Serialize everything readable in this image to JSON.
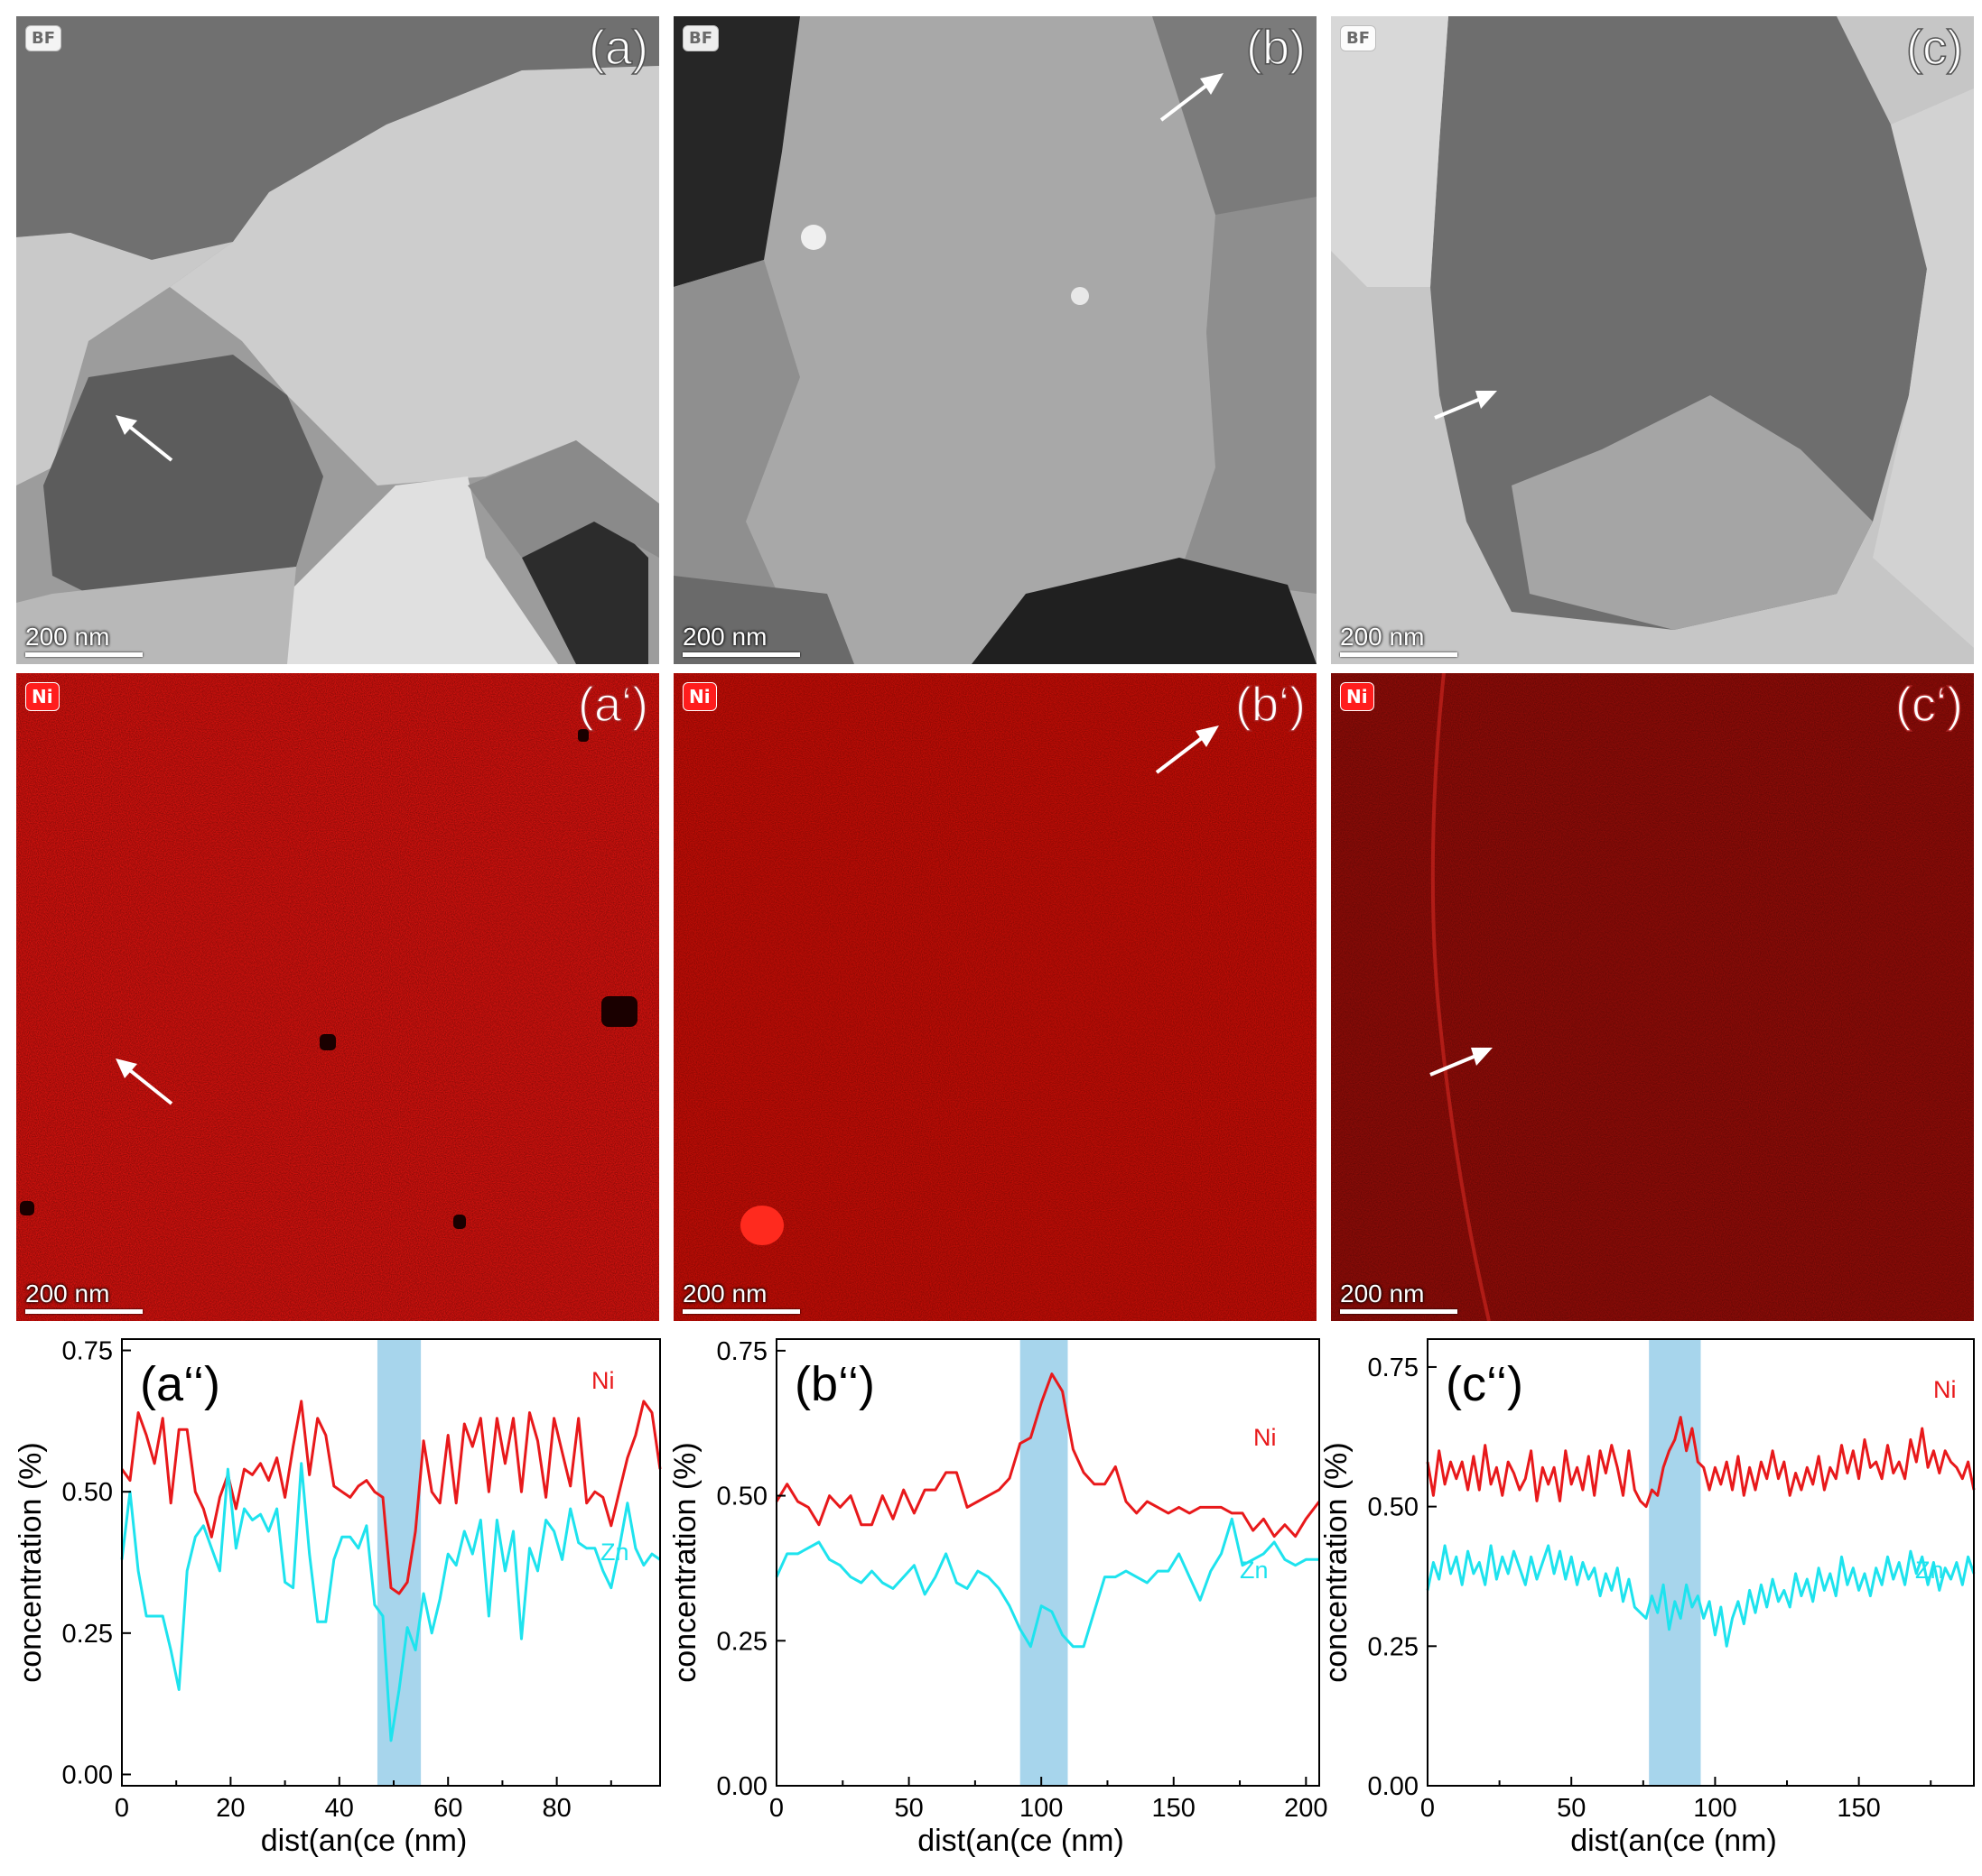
{
  "images": [
    {
      "key": "a",
      "badge": "BF",
      "label": "(a)",
      "scalebar": "200 nm"
    },
    {
      "key": "b",
      "badge": "BF",
      "label": "(b)",
      "scalebar": "200 nm"
    },
    {
      "key": "c",
      "badge": "BF",
      "label": "(c)",
      "scalebar": "200 nm"
    },
    {
      "key": "a1",
      "badge": "Ni",
      "label": "(a‘)",
      "scalebar": "200 nm"
    },
    {
      "key": "b1",
      "badge": "Ni",
      "label": "(b‘)",
      "scalebar": "200 nm"
    },
    {
      "key": "c1",
      "badge": "Ni",
      "label": "(c‘)",
      "scalebar": "200 nm"
    }
  ],
  "colors": {
    "ni_line": "#e8191b",
    "zn_line": "#1ee3ee",
    "highlight": "#a7d5ec",
    "map_a": "#d4120e",
    "map_b": "#c20d06",
    "map_c": "#8f0c08"
  },
  "chart_data": [
    {
      "type": "line",
      "panel_label": "(a‘‘)",
      "xlabel": "dist(an(ce (nm)",
      "ylabel": "concentration (%)",
      "xlim": [
        0,
        99
      ],
      "ylim": [
        -0.02,
        0.77
      ],
      "xticks": [
        "0",
        "20",
        "40",
        "60",
        "80"
      ],
      "yticks": [
        "0.00",
        "0.25",
        "0.50",
        "0.75"
      ],
      "highlight": [
        47,
        55
      ],
      "series": [
        {
          "name": "Ni",
          "x": [
            0,
            1.5,
            3,
            4.5,
            6,
            7.5,
            9,
            10.5,
            12,
            13.5,
            15,
            16.5,
            18,
            19.5,
            21,
            22.5,
            24,
            25.5,
            27,
            28.5,
            30,
            31.5,
            33,
            34.5,
            36,
            37.5,
            39,
            40.5,
            42,
            43.5,
            45,
            46.5,
            48,
            49.5,
            51,
            52.5,
            54,
            55.5,
            57,
            58.5,
            60,
            61.5,
            63,
            64.5,
            66,
            67.5,
            69,
            70.5,
            72,
            73.5,
            75,
            76.5,
            78,
            79.5,
            81,
            82.5,
            84,
            85.5,
            87,
            88.5,
            90,
            91.5,
            93,
            94.5,
            96,
            97.5,
            99
          ],
          "values": [
            0.54,
            0.52,
            0.64,
            0.6,
            0.55,
            0.63,
            0.48,
            0.61,
            0.61,
            0.5,
            0.47,
            0.42,
            0.49,
            0.53,
            0.47,
            0.54,
            0.53,
            0.55,
            0.52,
            0.56,
            0.49,
            0.58,
            0.66,
            0.53,
            0.63,
            0.6,
            0.51,
            0.5,
            0.49,
            0.51,
            0.52,
            0.5,
            0.49,
            0.33,
            0.32,
            0.34,
            0.43,
            0.59,
            0.5,
            0.48,
            0.6,
            0.48,
            0.62,
            0.58,
            0.63,
            0.5,
            0.63,
            0.55,
            0.63,
            0.5,
            0.64,
            0.59,
            0.49,
            0.63,
            0.57,
            0.51,
            0.63,
            0.48,
            0.5,
            0.49,
            0.44,
            0.5,
            0.56,
            0.6,
            0.66,
            0.64,
            0.54
          ]
        },
        {
          "name": "Zn",
          "x": [
            0,
            1.5,
            3,
            4.5,
            6,
            7.5,
            9,
            10.5,
            12,
            13.5,
            15,
            16.5,
            18,
            19.5,
            21,
            22.5,
            24,
            25.5,
            27,
            28.5,
            30,
            31.5,
            33,
            34.5,
            36,
            37.5,
            39,
            40.5,
            42,
            43.5,
            45,
            46.5,
            48,
            49.5,
            51,
            52.5,
            54,
            55.5,
            57,
            58.5,
            60,
            61.5,
            63,
            64.5,
            66,
            67.5,
            69,
            70.5,
            72,
            73.5,
            75,
            76.5,
            78,
            79.5,
            81,
            82.5,
            84,
            85.5,
            87,
            88.5,
            90,
            91.5,
            93,
            94.5,
            96,
            97.5,
            99
          ],
          "values": [
            0.38,
            0.5,
            0.36,
            0.28,
            0.28,
            0.28,
            0.22,
            0.15,
            0.36,
            0.42,
            0.44,
            0.4,
            0.36,
            0.54,
            0.4,
            0.47,
            0.45,
            0.46,
            0.43,
            0.47,
            0.34,
            0.33,
            0.55,
            0.39,
            0.27,
            0.27,
            0.38,
            0.42,
            0.42,
            0.4,
            0.44,
            0.3,
            0.28,
            0.06,
            0.15,
            0.26,
            0.22,
            0.32,
            0.25,
            0.31,
            0.39,
            0.37,
            0.43,
            0.39,
            0.45,
            0.28,
            0.45,
            0.36,
            0.43,
            0.24,
            0.4,
            0.36,
            0.45,
            0.43,
            0.38,
            0.47,
            0.41,
            0.4,
            0.4,
            0.36,
            0.33,
            0.4,
            0.48,
            0.4,
            0.37,
            0.39,
            0.38
          ]
        }
      ]
    },
    {
      "type": "line",
      "panel_label": "(b‘‘)",
      "xlabel": "dist(an(ce (nm)",
      "ylabel": "concentration (%)",
      "xlim": [
        0,
        205
      ],
      "ylim": [
        0,
        0.77
      ],
      "xticks": [
        "0",
        "50",
        "100",
        "150",
        "200"
      ],
      "yticks": [
        "0.00",
        "0.25",
        "0.50",
        "0.75"
      ],
      "highlight": [
        92,
        110
      ],
      "series": [
        {
          "name": "Ni",
          "x": [
            0,
            4,
            8,
            12,
            16,
            20,
            24,
            28,
            32,
            36,
            40,
            44,
            48,
            52,
            56,
            60,
            64,
            68,
            72,
            76,
            80,
            84,
            88,
            92,
            96,
            100,
            104,
            108,
            112,
            116,
            120,
            124,
            128,
            132,
            136,
            140,
            144,
            148,
            152,
            156,
            160,
            164,
            168,
            172,
            176,
            180,
            184,
            188,
            192,
            196,
            200,
            205
          ],
          "values": [
            0.49,
            0.52,
            0.49,
            0.48,
            0.45,
            0.5,
            0.48,
            0.5,
            0.45,
            0.45,
            0.5,
            0.46,
            0.51,
            0.47,
            0.51,
            0.51,
            0.54,
            0.54,
            0.48,
            0.49,
            0.5,
            0.51,
            0.53,
            0.59,
            0.6,
            0.66,
            0.71,
            0.68,
            0.58,
            0.54,
            0.52,
            0.52,
            0.55,
            0.49,
            0.47,
            0.49,
            0.48,
            0.47,
            0.48,
            0.47,
            0.48,
            0.48,
            0.48,
            0.47,
            0.47,
            0.44,
            0.46,
            0.43,
            0.45,
            0.43,
            0.46,
            0.49
          ]
        },
        {
          "name": "Zn",
          "x": [
            0,
            4,
            8,
            12,
            16,
            20,
            24,
            28,
            32,
            36,
            40,
            44,
            48,
            52,
            56,
            60,
            64,
            68,
            72,
            76,
            80,
            84,
            88,
            92,
            96,
            100,
            104,
            108,
            112,
            116,
            120,
            124,
            128,
            132,
            136,
            140,
            144,
            148,
            152,
            156,
            160,
            164,
            168,
            172,
            176,
            180,
            184,
            188,
            192,
            196,
            200,
            205
          ],
          "values": [
            0.36,
            0.4,
            0.4,
            0.41,
            0.42,
            0.39,
            0.38,
            0.36,
            0.35,
            0.37,
            0.35,
            0.34,
            0.36,
            0.38,
            0.33,
            0.36,
            0.4,
            0.35,
            0.34,
            0.37,
            0.36,
            0.34,
            0.31,
            0.27,
            0.24,
            0.31,
            0.3,
            0.26,
            0.24,
            0.24,
            0.3,
            0.36,
            0.36,
            0.37,
            0.36,
            0.35,
            0.37,
            0.37,
            0.4,
            0.36,
            0.32,
            0.37,
            0.4,
            0.46,
            0.38,
            0.39,
            0.4,
            0.42,
            0.39,
            0.38,
            0.39,
            0.39
          ]
        }
      ]
    },
    {
      "type": "line",
      "panel_label": "(c‘‘)",
      "xlabel": "dist(an(ce (nm)",
      "ylabel": "concentration (%)",
      "xlim": [
        0,
        190
      ],
      "ylim": [
        0,
        0.8
      ],
      "xticks": [
        "0",
        "50",
        "100",
        "150"
      ],
      "yticks": [
        "0.00",
        "0.25",
        "0.50",
        "0.75"
      ],
      "highlight": [
        77,
        95
      ],
      "series": [
        {
          "name": "Ni",
          "x": [
            0,
            2,
            4,
            6,
            8,
            10,
            12,
            14,
            16,
            18,
            20,
            22,
            24,
            26,
            28,
            30,
            32,
            34,
            36,
            38,
            40,
            42,
            44,
            46,
            48,
            50,
            52,
            54,
            56,
            58,
            60,
            62,
            64,
            66,
            68,
            70,
            72,
            74,
            76,
            78,
            80,
            82,
            84,
            86,
            88,
            90,
            92,
            94,
            96,
            98,
            100,
            102,
            104,
            106,
            108,
            110,
            112,
            114,
            116,
            118,
            120,
            122,
            124,
            126,
            128,
            130,
            132,
            134,
            136,
            138,
            140,
            142,
            144,
            146,
            148,
            150,
            152,
            154,
            156,
            158,
            160,
            162,
            164,
            166,
            168,
            170,
            172,
            174,
            176,
            178,
            180,
            182,
            184,
            186,
            188,
            190
          ],
          "values": [
            0.58,
            0.52,
            0.6,
            0.54,
            0.58,
            0.55,
            0.58,
            0.53,
            0.59,
            0.53,
            0.61,
            0.54,
            0.57,
            0.52,
            0.58,
            0.56,
            0.53,
            0.55,
            0.6,
            0.51,
            0.57,
            0.54,
            0.57,
            0.51,
            0.6,
            0.54,
            0.57,
            0.53,
            0.59,
            0.52,
            0.6,
            0.56,
            0.61,
            0.57,
            0.52,
            0.6,
            0.53,
            0.51,
            0.5,
            0.53,
            0.52,
            0.57,
            0.6,
            0.62,
            0.66,
            0.6,
            0.64,
            0.58,
            0.57,
            0.53,
            0.57,
            0.54,
            0.58,
            0.53,
            0.59,
            0.52,
            0.57,
            0.53,
            0.58,
            0.55,
            0.6,
            0.55,
            0.58,
            0.52,
            0.56,
            0.53,
            0.57,
            0.54,
            0.59,
            0.53,
            0.57,
            0.55,
            0.61,
            0.56,
            0.6,
            0.55,
            0.62,
            0.57,
            0.58,
            0.55,
            0.61,
            0.56,
            0.58,
            0.55,
            0.62,
            0.58,
            0.64,
            0.57,
            0.6,
            0.56,
            0.6,
            0.58,
            0.57,
            0.55,
            0.58,
            0.53
          ]
        },
        {
          "name": "Zn",
          "x": [
            0,
            2,
            4,
            6,
            8,
            10,
            12,
            14,
            16,
            18,
            20,
            22,
            24,
            26,
            28,
            30,
            32,
            34,
            36,
            38,
            40,
            42,
            44,
            46,
            48,
            50,
            52,
            54,
            56,
            58,
            60,
            62,
            64,
            66,
            68,
            70,
            72,
            74,
            76,
            78,
            80,
            82,
            84,
            86,
            88,
            90,
            92,
            94,
            96,
            98,
            100,
            102,
            104,
            106,
            108,
            110,
            112,
            114,
            116,
            118,
            120,
            122,
            124,
            126,
            128,
            130,
            132,
            134,
            136,
            138,
            140,
            142,
            144,
            146,
            148,
            150,
            152,
            154,
            156,
            158,
            160,
            162,
            164,
            166,
            168,
            170,
            172,
            174,
            176,
            178,
            180,
            182,
            184,
            186,
            188,
            190
          ],
          "values": [
            0.35,
            0.4,
            0.37,
            0.43,
            0.38,
            0.41,
            0.36,
            0.42,
            0.38,
            0.4,
            0.36,
            0.43,
            0.37,
            0.41,
            0.38,
            0.42,
            0.39,
            0.36,
            0.41,
            0.37,
            0.4,
            0.43,
            0.38,
            0.42,
            0.37,
            0.41,
            0.36,
            0.4,
            0.37,
            0.39,
            0.34,
            0.38,
            0.35,
            0.39,
            0.33,
            0.37,
            0.32,
            0.31,
            0.3,
            0.34,
            0.31,
            0.36,
            0.28,
            0.33,
            0.3,
            0.36,
            0.32,
            0.34,
            0.3,
            0.33,
            0.27,
            0.32,
            0.25,
            0.3,
            0.33,
            0.29,
            0.35,
            0.31,
            0.36,
            0.32,
            0.37,
            0.33,
            0.35,
            0.32,
            0.38,
            0.34,
            0.37,
            0.33,
            0.39,
            0.35,
            0.38,
            0.34,
            0.41,
            0.36,
            0.39,
            0.35,
            0.38,
            0.34,
            0.39,
            0.36,
            0.41,
            0.37,
            0.4,
            0.36,
            0.42,
            0.38,
            0.41,
            0.36,
            0.4,
            0.35,
            0.39,
            0.37,
            0.4,
            0.36,
            0.41,
            0.38
          ]
        }
      ]
    }
  ]
}
